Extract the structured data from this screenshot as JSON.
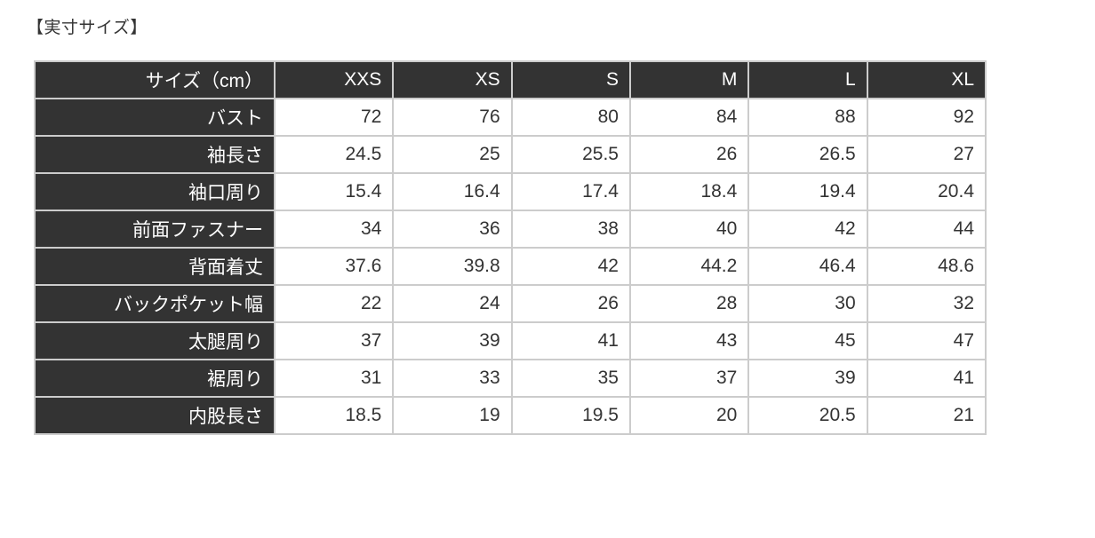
{
  "page": {
    "title": "【実寸サイズ】"
  },
  "colors": {
    "header_bg": "#333333",
    "header_text": "#ffffff",
    "cell_bg": "#ffffff",
    "cell_text": "#333333",
    "border": "#cccccc",
    "page_bg": "#ffffff"
  },
  "chart_data": {
    "type": "table",
    "title": "【実寸サイズ】",
    "unit_note": "cm",
    "columns": [
      "サイズ（cm）",
      "XXS",
      "XS",
      "S",
      "M",
      "L",
      "XL"
    ],
    "rows": [
      {
        "label": "バスト",
        "values": [
          "72",
          "76",
          "80",
          "84",
          "88",
          "92"
        ]
      },
      {
        "label": "袖長さ",
        "values": [
          "24.5",
          "25",
          "25.5",
          "26",
          "26.5",
          "27"
        ]
      },
      {
        "label": "袖口周り",
        "values": [
          "15.4",
          "16.4",
          "17.4",
          "18.4",
          "19.4",
          "20.4"
        ]
      },
      {
        "label": "前面ファスナー",
        "values": [
          "34",
          "36",
          "38",
          "40",
          "42",
          "44"
        ]
      },
      {
        "label": "背面着丈",
        "values": [
          "37.6",
          "39.8",
          "42",
          "44.2",
          "46.4",
          "48.6"
        ]
      },
      {
        "label": "バックポケット幅",
        "values": [
          "22",
          "24",
          "26",
          "28",
          "30",
          "32"
        ]
      },
      {
        "label": "太腿周り",
        "values": [
          "37",
          "39",
          "41",
          "43",
          "45",
          "47"
        ]
      },
      {
        "label": "裾周り",
        "values": [
          "31",
          "33",
          "35",
          "37",
          "39",
          "41"
        ]
      },
      {
        "label": "内股長さ",
        "values": [
          "18.5",
          "19",
          "19.5",
          "20",
          "20.5",
          "21"
        ]
      }
    ]
  }
}
